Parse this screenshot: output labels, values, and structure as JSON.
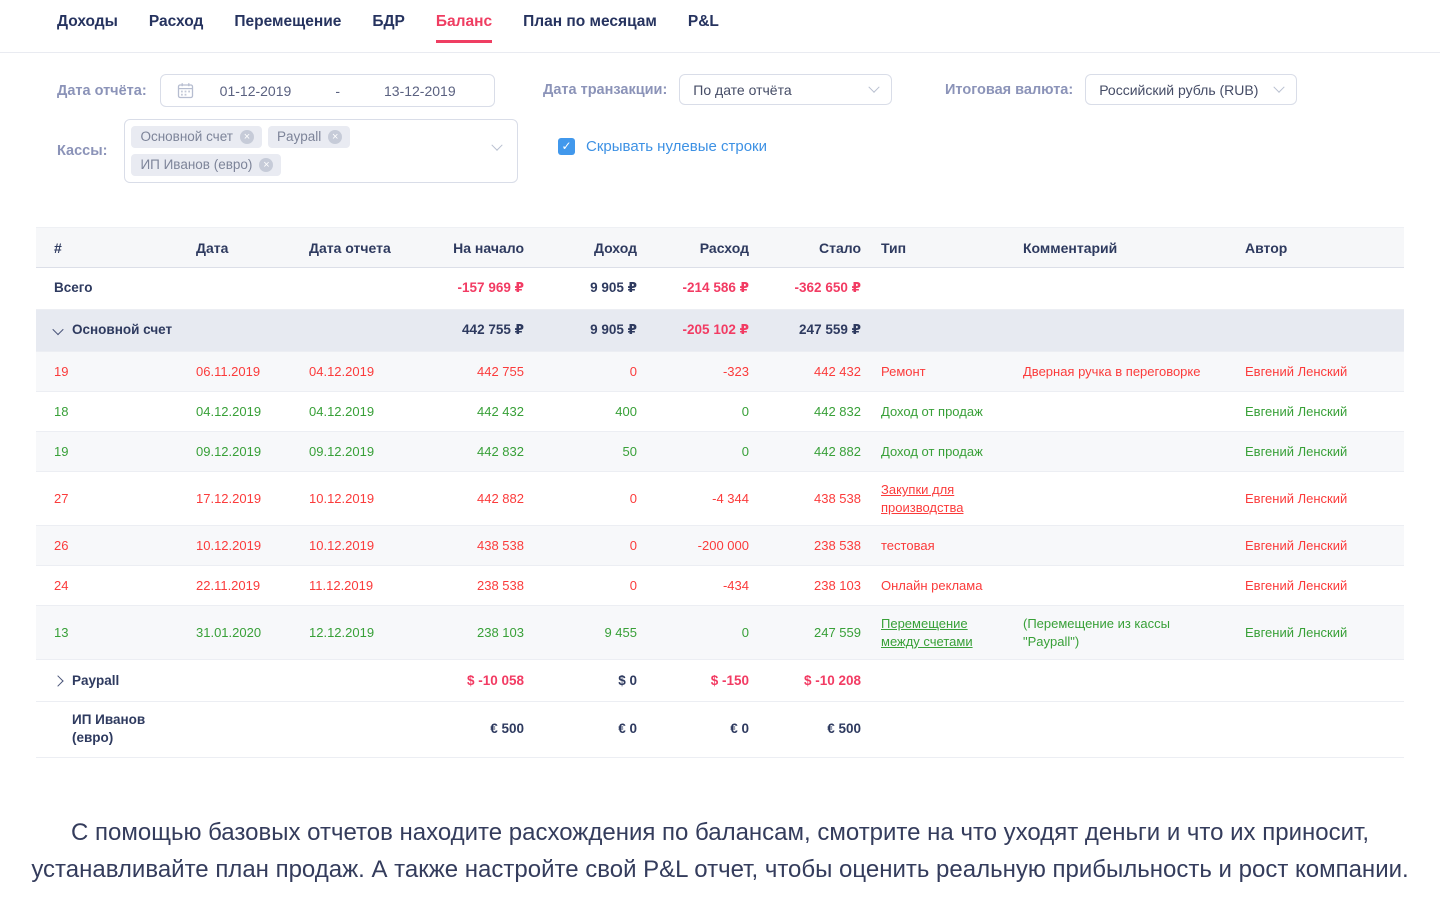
{
  "tabs": {
    "items": [
      {
        "name": "incomes",
        "label": "Доходы",
        "active": false
      },
      {
        "name": "expenses",
        "label": "Расход",
        "active": false
      },
      {
        "name": "transfers",
        "label": "Перемещение",
        "active": false
      },
      {
        "name": "bdr",
        "label": "БДР",
        "active": false
      },
      {
        "name": "balance",
        "label": "Баланс",
        "active": true
      },
      {
        "name": "monthly-plan",
        "label": "План по месяцам",
        "active": false
      },
      {
        "name": "pl",
        "label": "P&L",
        "active": false
      }
    ]
  },
  "filters": {
    "report_date": {
      "label": "Дата отчёта:",
      "from": "01-12-2019",
      "separator": "-",
      "to": "13-12-2019"
    },
    "transaction_date": {
      "label": "Дата транзакции:",
      "value": "По дате отчёта"
    },
    "total_currency": {
      "label": "Итоговая валюта:",
      "value": "Российский рубль (RUB)"
    },
    "cash_accounts": {
      "label": "Кассы:",
      "tags": [
        "Основной счет",
        "Paypall",
        "ИП Иванов (евро)"
      ]
    },
    "hide_zero_rows": {
      "label": "Скрывать нулевые строки",
      "checked": true
    }
  },
  "colors": {
    "accent": "#ef3e62",
    "negative_total": "#f23b63",
    "row_negative": "#fb3b3b",
    "row_positive": "#38a038",
    "link_blue": "#3d91e4",
    "navy_text": "#2e3a5f"
  },
  "table": {
    "columns": [
      "#",
      "Дата",
      "Дата отчета",
      "На начало",
      "Доход",
      "Расход",
      "Стало",
      "Тип",
      "Комментарий",
      "Автор"
    ],
    "rows": [
      {
        "kind": "total",
        "label": "Всего",
        "start": "-157 969 ₽",
        "income": "9 905 ₽",
        "expense": "-214 586 ₽",
        "end": "-362 650 ₽"
      },
      {
        "kind": "group",
        "label": "Основной счет",
        "chevron": "down",
        "highlight": true,
        "start": "442 755 ₽",
        "income": "9 905 ₽",
        "expense": "-205 102 ₽",
        "end": "247 559 ₽"
      },
      {
        "kind": "detail",
        "tone": "red",
        "num": "19",
        "date": "06.11.2019",
        "report_date": "04.12.2019",
        "start": "442 755",
        "income": "0",
        "expense": "-323",
        "end": "442 432",
        "type": "Ремонт",
        "type_link": false,
        "comment": "Дверная ручка в переговорке",
        "author": "Евгений Ленский"
      },
      {
        "kind": "detail",
        "tone": "green",
        "num": "18",
        "date": "04.12.2019",
        "report_date": "04.12.2019",
        "start": "442 432",
        "income": "400",
        "expense": "0",
        "end": "442 832",
        "type": "Доход от продаж",
        "type_link": false,
        "comment": "",
        "author": "Евгений Ленский"
      },
      {
        "kind": "detail",
        "tone": "green",
        "num": "19",
        "date": "09.12.2019",
        "report_date": "09.12.2019",
        "start": "442 832",
        "income": "50",
        "expense": "0",
        "end": "442 882",
        "type": "Доход от продаж",
        "type_link": false,
        "comment": "",
        "author": "Евгений Ленский"
      },
      {
        "kind": "detail",
        "tone": "red",
        "num": "27",
        "date": "17.12.2019",
        "report_date": "10.12.2019",
        "start": "442 882",
        "income": "0",
        "expense": "-4 344",
        "end": "438 538",
        "type": "Закупки для производства",
        "type_link": true,
        "comment": "",
        "author": "Евгений Ленский"
      },
      {
        "kind": "detail",
        "tone": "red",
        "num": "26",
        "date": "10.12.2019",
        "report_date": "10.12.2019",
        "start": "438 538",
        "income": "0",
        "expense": "-200 000",
        "end": "238 538",
        "type": "тестовая",
        "type_link": false,
        "comment": "",
        "author": "Евгений Ленский"
      },
      {
        "kind": "detail",
        "tone": "red",
        "num": "24",
        "date": "22.11.2019",
        "report_date": "11.12.2019",
        "start": "238 538",
        "income": "0",
        "expense": "-434",
        "end": "238 103",
        "type": "Онлайн реклама",
        "type_link": false,
        "comment": "",
        "author": "Евгений Ленский"
      },
      {
        "kind": "detail",
        "tone": "green",
        "num": "13",
        "date": "31.01.2020",
        "report_date": "12.12.2019",
        "start": "238 103",
        "income": "9 455",
        "expense": "0",
        "end": "247 559",
        "type": "Перемещение между счетами",
        "type_link": true,
        "comment": "(Перемещение из кассы \"Paypall\")",
        "author": "Евгений Ленский"
      },
      {
        "kind": "group",
        "label": "Paypall",
        "chevron": "right",
        "highlight": false,
        "start": "$ -10 058",
        "income": "$ 0",
        "expense": "$ -150",
        "end": "$ -10 208"
      },
      {
        "kind": "group",
        "label": "ИП Иванов (евро)",
        "chevron": "none",
        "highlight": false,
        "start": "€ 500",
        "income": "€ 0",
        "expense": "€ 0",
        "end": "€ 500"
      }
    ]
  },
  "footer": {
    "text": "С помощью базовых отчетов находите расхождения по балансам, смотрите на что уходят деньги и что их приносит, устанавливайте план продаж. А также настройте свой P&L отчет, чтобы оценить реальную прибыльность и рост компании."
  }
}
